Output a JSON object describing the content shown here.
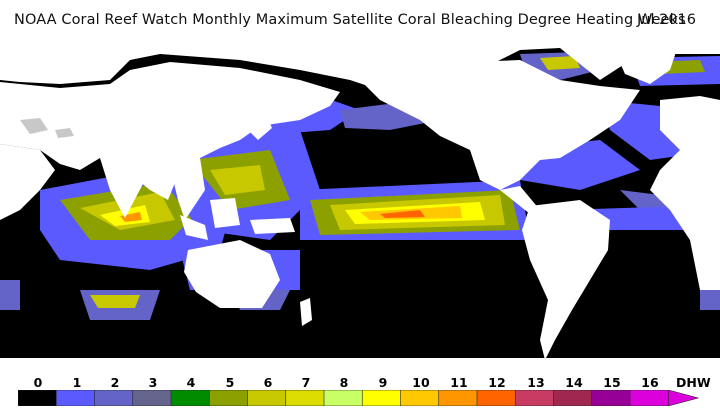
{
  "header": {
    "title": "NOAA Coral Reef Watch Monthly Maximum Satellite Coral Bleaching Degree Heating Weeks",
    "date": "Jul 2016"
  },
  "legend": {
    "unit": "DHW",
    "labels": [
      "0",
      "1",
      "2",
      "3",
      "4",
      "5",
      "6",
      "7",
      "8",
      "9",
      "10",
      "11",
      "12",
      "13",
      "14",
      "15",
      "16"
    ],
    "colors": [
      "#000000",
      "#5a5aff",
      "#6464c8",
      "#64648c",
      "#008c00",
      "#8ca000",
      "#c8c800",
      "#dcdc00",
      "#c8ff64",
      "#ffff00",
      "#ffc800",
      "#ff9600",
      "#ff6400",
      "#c83c64",
      "#a02850",
      "#960096",
      "#dc00dc"
    ]
  },
  "colors": {
    "land": "#ffffff",
    "ocean": "#000000",
    "ice": "#c8c8c8"
  }
}
